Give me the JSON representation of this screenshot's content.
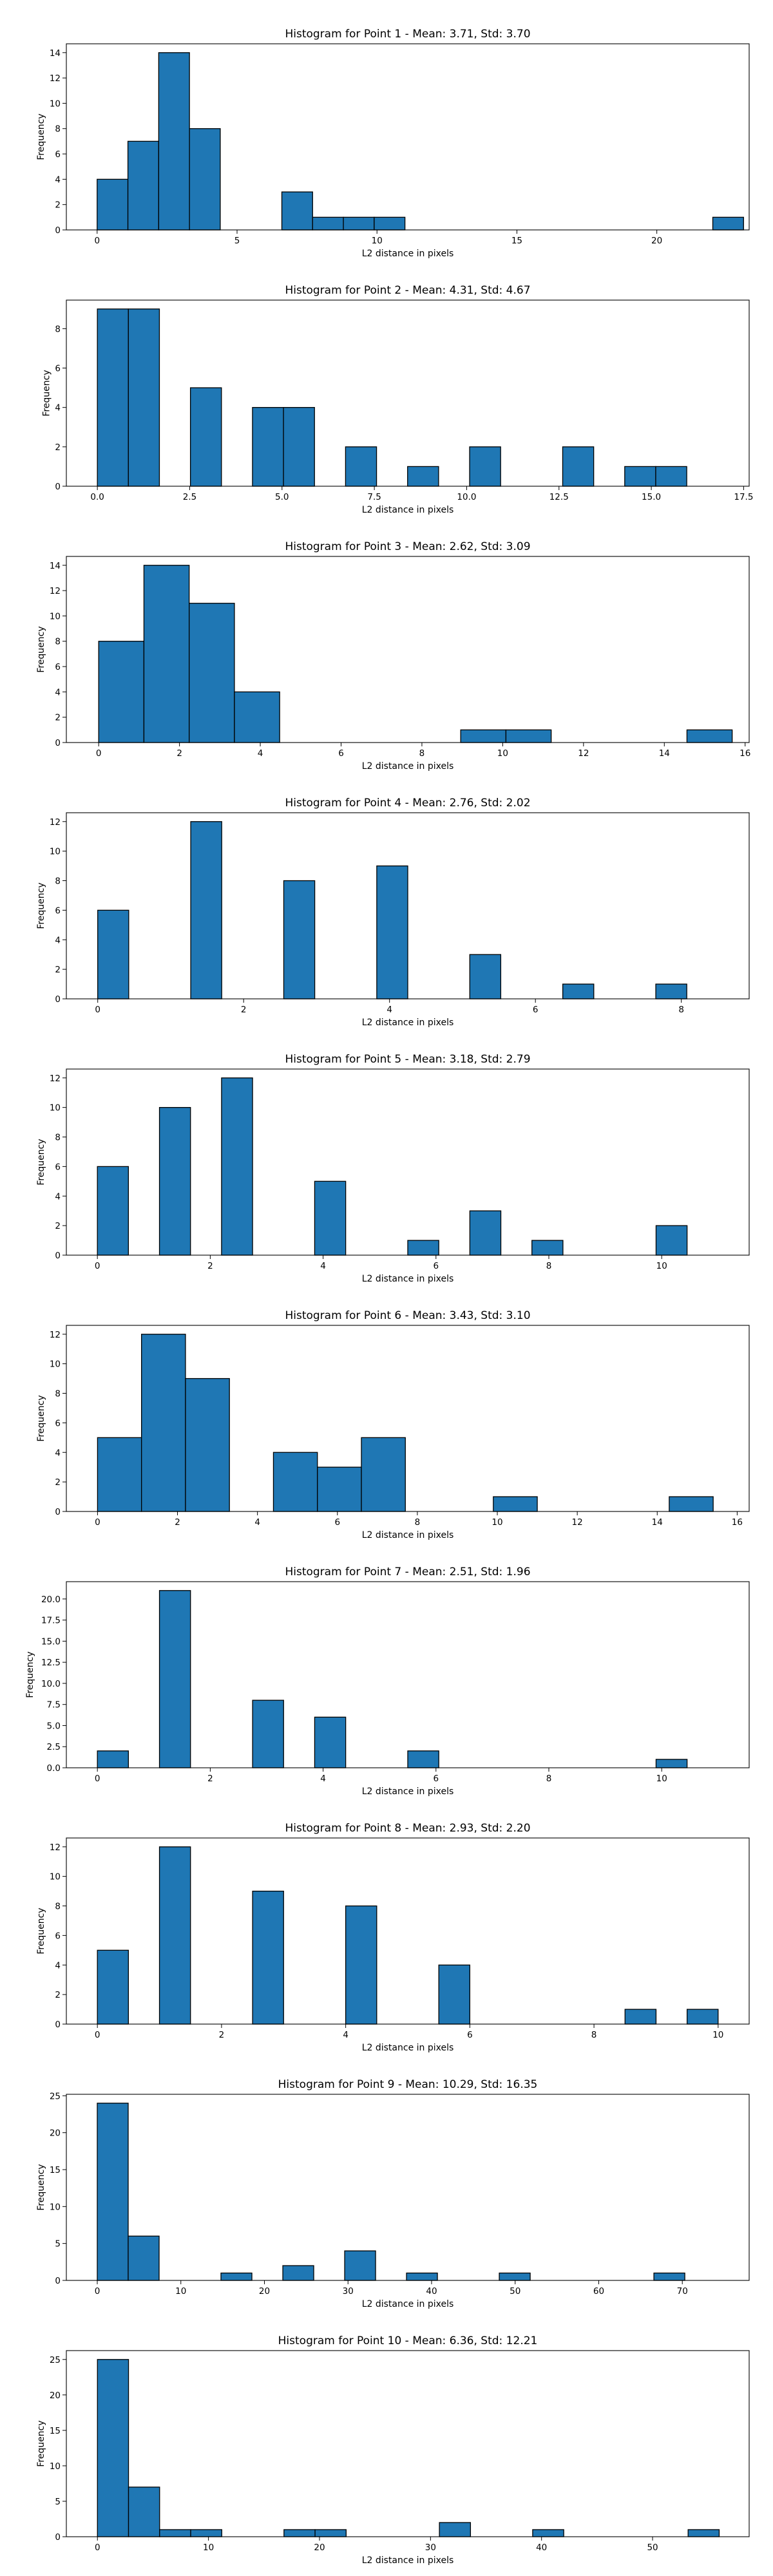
{
  "style": {
    "bar_color": "#1f77b4",
    "edge_color": "#000000",
    "background": "#ffffff"
  },
  "chart_data": [
    {
      "type": "bar",
      "title": "Histogram for Point 1 - Mean: 3.71, Std: 3.70",
      "xlabel": "L2 distance in pixels",
      "ylabel": "Frequency",
      "xlim": [
        -1.1,
        23.3
      ],
      "ylim": [
        0,
        14.7
      ],
      "xticks": [
        0,
        5,
        10,
        15,
        20
      ],
      "xtick_labels": [
        "0",
        "5",
        "10",
        "15",
        "20"
      ],
      "yticks": [
        0,
        2,
        4,
        6,
        8,
        10,
        12,
        14
      ],
      "ytick_labels": [
        "0",
        "2",
        "4",
        "6",
        "8",
        "10",
        "12",
        "14"
      ],
      "bin_edges": [
        0,
        1.1,
        2.2,
        3.3,
        4.4,
        5.5,
        6.6,
        7.7,
        8.8,
        9.9,
        11.0,
        12.1,
        13.2,
        14.3,
        15.4,
        16.5,
        17.6,
        18.7,
        19.8,
        20.9,
        22.0,
        23.1
      ],
      "values": [
        4,
        7,
        14,
        8,
        0,
        0,
        3,
        1,
        1,
        1,
        0,
        0,
        0,
        0,
        0,
        0,
        0,
        0,
        0,
        0,
        1
      ]
    },
    {
      "type": "bar",
      "title": "Histogram for Point 2 - Mean: 4.31, Std: 4.67",
      "xlabel": "L2 distance in pixels",
      "ylabel": "Frequency",
      "xlim": [
        -0.84,
        17.65
      ],
      "ylim": [
        0,
        9.45
      ],
      "xticks": [
        0,
        2.5,
        5,
        7.5,
        10,
        12.5,
        15,
        17.5
      ],
      "xtick_labels": [
        "0.0",
        "2.5",
        "5.0",
        "7.5",
        "10.0",
        "12.5",
        "15.0",
        "17.5"
      ],
      "yticks": [
        0,
        2,
        4,
        6,
        8
      ],
      "ytick_labels": [
        "0",
        "2",
        "4",
        "6",
        "8"
      ],
      "bin_edges": [
        0,
        0.84,
        1.68,
        2.52,
        3.36,
        4.2,
        5.04,
        5.88,
        6.72,
        7.56,
        8.4,
        9.24,
        10.08,
        10.92,
        11.76,
        12.6,
        13.44,
        14.28,
        15.12,
        15.96,
        16.8
      ],
      "values": [
        9,
        9,
        0,
        5,
        0,
        4,
        4,
        0,
        2,
        0,
        1,
        0,
        2,
        0,
        0,
        2,
        0,
        1,
        1,
        0
      ]
    },
    {
      "type": "bar",
      "title": "Histogram for Point 3 - Mean: 2.62, Std: 3.09",
      "xlabel": "L2 distance in pixels",
      "ylabel": "Frequency",
      "xlim": [
        -0.8,
        16.1
      ],
      "ylim": [
        0,
        14.7
      ],
      "xticks": [
        0,
        2,
        4,
        6,
        8,
        10,
        12,
        14,
        16
      ],
      "xtick_labels": [
        "0",
        "2",
        "4",
        "6",
        "8",
        "10",
        "12",
        "14",
        "16"
      ],
      "yticks": [
        0,
        2,
        4,
        6,
        8,
        10,
        12,
        14
      ],
      "ytick_labels": [
        "0",
        "2",
        "4",
        "6",
        "8",
        "10",
        "12",
        "14"
      ],
      "bin_edges": [
        0,
        1.12,
        2.24,
        3.36,
        4.48,
        5.6,
        6.72,
        7.84,
        8.96,
        10.08,
        11.2,
        12.32,
        13.44,
        14.56,
        15.68
      ],
      "values": [
        8,
        14,
        11,
        4,
        0,
        0,
        0,
        0,
        1,
        1,
        0,
        0,
        0,
        1
      ]
    },
    {
      "type": "bar",
      "title": "Histogram for Point 4 - Mean: 2.76, Std: 2.02",
      "xlabel": "L2 distance in pixels",
      "ylabel": "Frequency",
      "xlim": [
        -0.43,
        8.93
      ],
      "ylim": [
        0,
        12.6
      ],
      "xticks": [
        0,
        2,
        4,
        6,
        8
      ],
      "xtick_labels": [
        "0",
        "2",
        "4",
        "6",
        "8"
      ],
      "yticks": [
        0,
        2,
        4,
        6,
        8,
        10,
        12
      ],
      "ytick_labels": [
        "0",
        "2",
        "4",
        "6",
        "8",
        "10",
        "12"
      ],
      "bin_edges": [
        0,
        0.425,
        0.85,
        1.275,
        1.7,
        2.125,
        2.55,
        2.975,
        3.4,
        3.825,
        4.25,
        4.675,
        5.1,
        5.525,
        5.95,
        6.375,
        6.8,
        7.225,
        7.65,
        8.075,
        8.5
      ],
      "values": [
        6,
        0,
        0,
        12,
        0,
        0,
        8,
        0,
        0,
        9,
        0,
        0,
        3,
        0,
        0,
        1,
        0,
        0,
        1,
        0
      ]
    },
    {
      "type": "bar",
      "title": "Histogram for Point 5 - Mean: 3.18, Std: 2.79",
      "xlabel": "L2 distance in pixels",
      "ylabel": "Frequency",
      "xlim": [
        -0.55,
        11.55
      ],
      "ylim": [
        0,
        12.6
      ],
      "xticks": [
        0,
        2,
        4,
        6,
        8,
        10
      ],
      "xtick_labels": [
        "0",
        "2",
        "4",
        "6",
        "8",
        "10"
      ],
      "yticks": [
        0,
        2,
        4,
        6,
        8,
        10,
        12
      ],
      "ytick_labels": [
        "0",
        "2",
        "4",
        "6",
        "8",
        "10",
        "12"
      ],
      "bin_edges": [
        0,
        0.55,
        1.1,
        1.65,
        2.2,
        2.75,
        3.3,
        3.85,
        4.4,
        4.95,
        5.5,
        6.05,
        6.6,
        7.15,
        7.7,
        8.25,
        8.8,
        9.35,
        9.9,
        10.45,
        11.0
      ],
      "values": [
        6,
        0,
        10,
        0,
        12,
        0,
        0,
        5,
        0,
        0,
        1,
        0,
        3,
        0,
        1,
        0,
        0,
        0,
        2,
        0
      ]
    },
    {
      "type": "bar",
      "title": "Histogram for Point 6 - Mean: 3.43, Std: 3.10",
      "xlabel": "L2 distance in pixels",
      "ylabel": "Frequency",
      "xlim": [
        -0.78,
        16.3
      ],
      "ylim": [
        0,
        12.6
      ],
      "xticks": [
        0,
        2,
        4,
        6,
        8,
        10,
        12,
        14,
        16
      ],
      "xtick_labels": [
        "0",
        "2",
        "4",
        "6",
        "8",
        "10",
        "12",
        "14",
        "16"
      ],
      "yticks": [
        0,
        2,
        4,
        6,
        8,
        10,
        12
      ],
      "ytick_labels": [
        "0",
        "2",
        "4",
        "6",
        "8",
        "10",
        "12"
      ],
      "bin_edges": [
        0,
        1.1,
        2.2,
        3.3,
        4.4,
        5.5,
        6.6,
        7.7,
        8.8,
        9.9,
        11.0,
        12.1,
        13.2,
        14.3,
        15.4
      ],
      "values": [
        5,
        12,
        9,
        0,
        4,
        3,
        5,
        0,
        0,
        1,
        0,
        0,
        0,
        1
      ]
    },
    {
      "type": "bar",
      "title": "Histogram for Point 7 - Mean: 2.51, Std: 1.96",
      "xlabel": "L2 distance in pixels",
      "ylabel": "Frequency",
      "xlim": [
        -0.55,
        11.55
      ],
      "ylim": [
        0,
        22.05
      ],
      "xticks": [
        0,
        2,
        4,
        6,
        8,
        10
      ],
      "xtick_labels": [
        "0",
        "2",
        "4",
        "6",
        "8",
        "10"
      ],
      "yticks": [
        0,
        2.5,
        5,
        7.5,
        10,
        12.5,
        15,
        17.5,
        20
      ],
      "ytick_labels": [
        "0.0",
        "2.5",
        "5.0",
        "7.5",
        "10.0",
        "12.5",
        "15.0",
        "17.5",
        "20.0"
      ],
      "bin_edges": [
        0,
        0.55,
        1.1,
        1.65,
        2.2,
        2.75,
        3.3,
        3.85,
        4.4,
        4.95,
        5.5,
        6.05,
        6.6,
        7.15,
        7.7,
        8.25,
        8.8,
        9.35,
        9.9,
        10.45,
        11.0
      ],
      "values": [
        2,
        0,
        21,
        0,
        0,
        8,
        0,
        6,
        0,
        0,
        2,
        0,
        0,
        0,
        0,
        0,
        0,
        0,
        1,
        0
      ]
    },
    {
      "type": "bar",
      "title": "Histogram for Point 8 - Mean: 2.93, Std: 2.20",
      "xlabel": "L2 distance in pixels",
      "ylabel": "Frequency",
      "xlim": [
        -0.5,
        10.5
      ],
      "ylim": [
        0,
        12.6
      ],
      "xticks": [
        0,
        2,
        4,
        6,
        8,
        10
      ],
      "xtick_labels": [
        "0",
        "2",
        "4",
        "6",
        "8",
        "10"
      ],
      "yticks": [
        0,
        2,
        4,
        6,
        8,
        10,
        12
      ],
      "ytick_labels": [
        "0",
        "2",
        "4",
        "6",
        "8",
        "10",
        "12"
      ],
      "bin_edges": [
        0,
        0.5,
        1.0,
        1.5,
        2.0,
        2.5,
        3.0,
        3.5,
        4.0,
        4.5,
        5.0,
        5.5,
        6.0,
        6.5,
        7.0,
        7.5,
        8.0,
        8.5,
        9.0,
        9.5,
        10.0
      ],
      "values": [
        5,
        0,
        12,
        0,
        0,
        9,
        0,
        0,
        8,
        0,
        0,
        4,
        0,
        0,
        0,
        0,
        0,
        1,
        0,
        1
      ]
    },
    {
      "type": "bar",
      "title": "Histogram for Point 9 - Mean: 10.29, Std: 16.35",
      "xlabel": "L2 distance in pixels",
      "ylabel": "Frequency",
      "xlim": [
        -3.7,
        78.0
      ],
      "ylim": [
        0,
        25.2
      ],
      "xticks": [
        0,
        10,
        20,
        30,
        40,
        50,
        60,
        70
      ],
      "xtick_labels": [
        "0",
        "10",
        "20",
        "30",
        "40",
        "50",
        "60",
        "70"
      ],
      "yticks": [
        0,
        5,
        10,
        15,
        20,
        25
      ],
      "ytick_labels": [
        "0",
        "5",
        "10",
        "15",
        "20",
        "25"
      ],
      "bin_edges": [
        0,
        3.7,
        7.4,
        11.1,
        14.8,
        18.5,
        22.2,
        25.9,
        29.6,
        33.3,
        37.0,
        40.7,
        44.4,
        48.1,
        51.8,
        55.5,
        59.2,
        62.9,
        66.6,
        70.3,
        74.0
      ],
      "values": [
        24,
        6,
        0,
        0,
        1,
        0,
        2,
        0,
        4,
        0,
        1,
        0,
        0,
        1,
        0,
        0,
        0,
        0,
        1,
        0
      ]
    },
    {
      "type": "bar",
      "title": "Histogram for Point 10 - Mean: 6.36, Std: 12.21",
      "xlabel": "L2 distance in pixels",
      "ylabel": "Frequency",
      "xlim": [
        -2.8,
        58.7
      ],
      "ylim": [
        0,
        26.25
      ],
      "xticks": [
        0,
        10,
        20,
        30,
        40,
        50
      ],
      "xtick_labels": [
        "0",
        "10",
        "20",
        "30",
        "40",
        "50"
      ],
      "yticks": [
        0,
        5,
        10,
        15,
        20,
        25
      ],
      "ytick_labels": [
        "0",
        "5",
        "10",
        "15",
        "20",
        "25"
      ],
      "bin_edges": [
        0,
        2.8,
        5.6,
        8.4,
        11.2,
        14.0,
        16.8,
        19.6,
        22.4,
        25.2,
        28.0,
        30.8,
        33.6,
        36.4,
        39.2,
        42.0,
        44.8,
        47.6,
        50.4,
        53.2,
        56.0
      ],
      "values": [
        25,
        7,
        1,
        1,
        0,
        0,
        1,
        1,
        0,
        0,
        0,
        2,
        0,
        0,
        1,
        0,
        0,
        0,
        0,
        1
      ]
    }
  ]
}
